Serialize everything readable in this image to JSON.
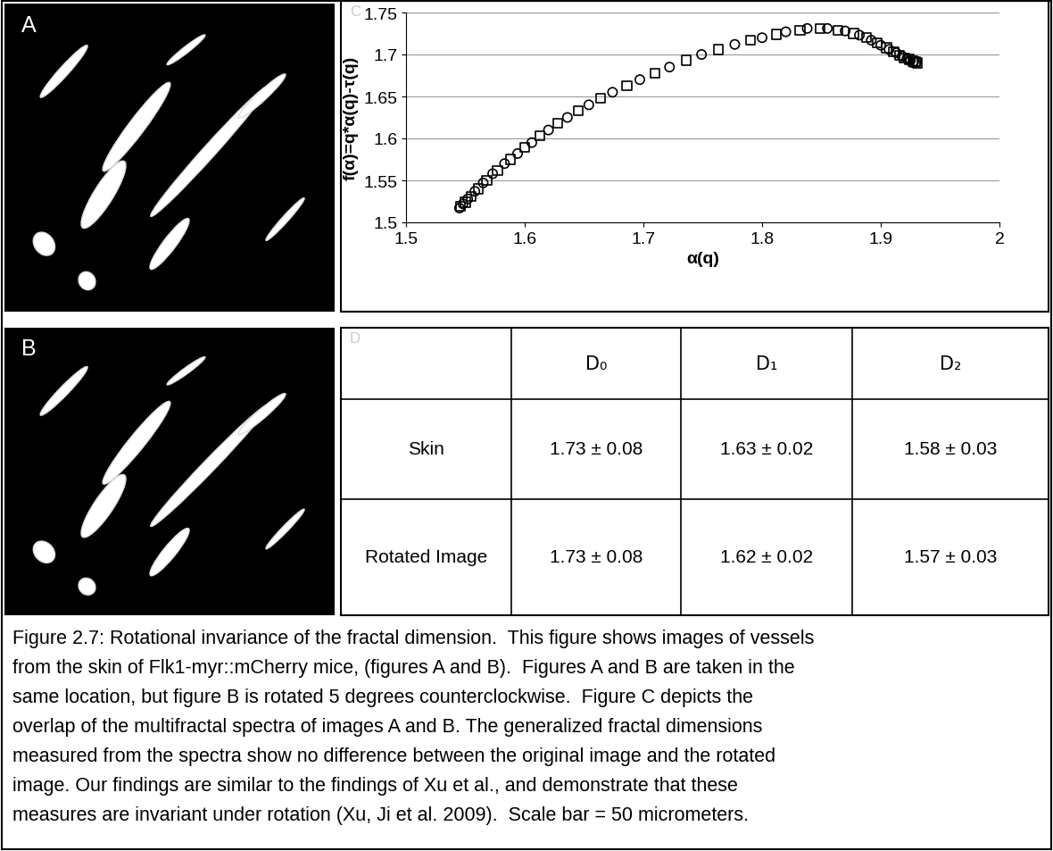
{
  "image_panels": [
    {
      "label": "A"
    },
    {
      "label": "B"
    }
  ],
  "chart_panel_label": "C",
  "chart_data": {
    "type": "scatter",
    "xlabel": "α(q)",
    "ylabel": "f(α)=q*α(q)-τ(q)",
    "xlim": [
      1.5,
      2
    ],
    "xticks": [
      1.5,
      1.6,
      1.7,
      1.8,
      1.9,
      2
    ],
    "ylim": [
      1.5,
      1.75
    ],
    "yticks": [
      1.5,
      1.55,
      1.6,
      1.65,
      1.7,
      1.75
    ],
    "grid": "y",
    "series": [
      {
        "marker": "circle",
        "color": "#000000",
        "x": [
          1.545,
          1.548,
          1.552,
          1.558,
          1.565,
          1.573,
          1.583,
          1.594,
          1.606,
          1.62,
          1.636,
          1.654,
          1.674,
          1.697,
          1.722,
          1.749,
          1.777,
          1.8,
          1.82,
          1.838,
          1.855,
          1.87,
          1.882,
          1.892,
          1.9,
          1.907,
          1.913,
          1.918,
          1.922,
          1.925,
          1.928,
          1.93
        ],
        "values": [
          1.517,
          1.522,
          1.528,
          1.537,
          1.547,
          1.558,
          1.57,
          1.582,
          1.595,
          1.61,
          1.625,
          1.64,
          1.655,
          1.67,
          1.685,
          1.7,
          1.712,
          1.72,
          1.727,
          1.731,
          1.731,
          1.728,
          1.723,
          1.717,
          1.711,
          1.706,
          1.702,
          1.698,
          1.695,
          1.693,
          1.692,
          1.691
        ]
      },
      {
        "marker": "square",
        "color": "#000000",
        "x": [
          1.546,
          1.55,
          1.555,
          1.561,
          1.568,
          1.577,
          1.588,
          1.6,
          1.613,
          1.628,
          1.645,
          1.664,
          1.686,
          1.71,
          1.736,
          1.763,
          1.79,
          1.812,
          1.832,
          1.849,
          1.864,
          1.877,
          1.888,
          1.897,
          1.905,
          1.911,
          1.916,
          1.92,
          1.924,
          1.927,
          1.929,
          1.931
        ],
        "values": [
          1.519,
          1.524,
          1.531,
          1.54,
          1.55,
          1.562,
          1.575,
          1.589,
          1.603,
          1.618,
          1.633,
          1.648,
          1.663,
          1.678,
          1.693,
          1.706,
          1.717,
          1.724,
          1.729,
          1.731,
          1.729,
          1.725,
          1.72,
          1.714,
          1.708,
          1.703,
          1.699,
          1.696,
          1.694,
          1.692,
          1.691,
          1.69
        ]
      }
    ]
  },
  "table_panel_label": "D",
  "table": {
    "header": [
      null,
      "D₀",
      "D₁",
      "D₂"
    ],
    "rows": [
      [
        "Skin",
        "1.73 ± 0.08",
        "1.63 ± 0.02",
        "1.58 ± 0.03"
      ],
      [
        "Rotated Image",
        "1.73 ± 0.08",
        "1.62 ± 0.02",
        "1.57 ± 0.03"
      ]
    ]
  },
  "caption": [
    "Figure 2.7: Rotational invariance of the fractal dimension.  This figure shows images of vessels",
    "from the skin of Flk1-myr::mCherry mice, (figures A and B).  Figures A and B are taken in the",
    "same location, but figure B is rotated 5 degrees counterclockwise.  Figure C depicts the",
    "overlap of the multifractal spectra of images A and B. The generalized fractal dimensions",
    "measured from the spectra show no difference between the original image and the rotated",
    "image. Our findings are similar to the findings of Xu et al., and demonstrate that these",
    "measures are invariant under rotation (Xu, Ji et al. 2009).  Scale bar = 50 micrometers."
  ]
}
